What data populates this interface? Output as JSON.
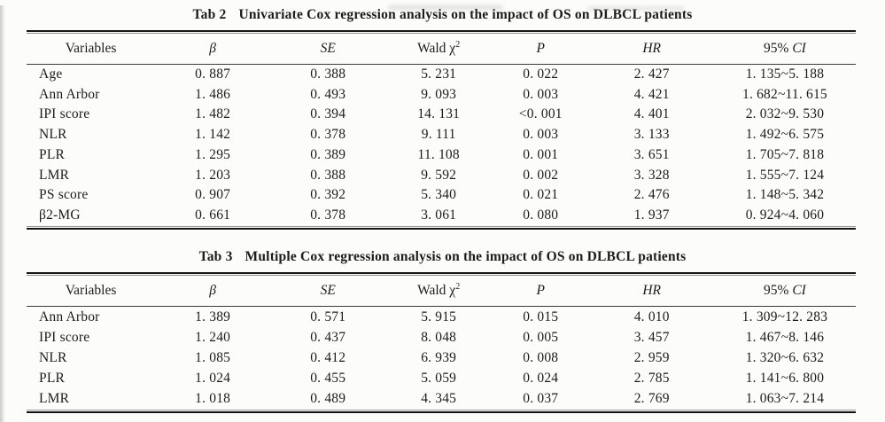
{
  "header_columns": {
    "variables": "Variables",
    "beta": "β",
    "se": "SE",
    "wald": "Wald χ",
    "wald_sup": "2",
    "p": "P",
    "hr": "HR",
    "ci_plain": "95%",
    "ci_italic": "CI"
  },
  "tab2": {
    "title_label": "Tab 2",
    "title_text": "Univariate Cox regression analysis on the impact of OS on DLBCL patients",
    "rows": [
      [
        "Age",
        "0. 887",
        "0. 388",
        "5. 231",
        "0. 022",
        "2. 427",
        "1. 135~5. 188"
      ],
      [
        "Ann Arbor",
        "1. 486",
        "0. 493",
        "9. 093",
        "0. 003",
        "4. 421",
        "1. 682~11. 615"
      ],
      [
        "IPI score",
        "1. 482",
        "0. 394",
        "14. 131",
        "<0. 001",
        "4. 401",
        "2. 032~9. 530"
      ],
      [
        "NLR",
        "1. 142",
        "0. 378",
        "9. 111",
        "0. 003",
        "3. 133",
        "1. 492~6. 575"
      ],
      [
        "PLR",
        "1. 295",
        "0. 389",
        "11. 108",
        "0. 001",
        "3. 651",
        "1. 705~7. 818"
      ],
      [
        "LMR",
        "1. 203",
        "0. 388",
        "9. 592",
        "0. 002",
        "3. 328",
        "1. 555~7. 124"
      ],
      [
        "PS score",
        "0. 907",
        "0. 392",
        "5. 340",
        "0. 021",
        "2. 476",
        "1. 148~5. 342"
      ],
      [
        "β2-MG",
        "0. 661",
        "0. 378",
        "3. 061",
        "0. 080",
        "1. 937",
        "0. 924~4. 060"
      ]
    ]
  },
  "tab3": {
    "title_label": "Tab 3",
    "title_text": "Multiple Cox regression analysis on the impact of OS on DLBCL patients",
    "rows": [
      [
        "Ann Arbor",
        "1. 389",
        "0. 571",
        "5. 915",
        "0. 015",
        "4. 010",
        "1. 309~12. 283"
      ],
      [
        "IPI score",
        "1. 240",
        "0. 437",
        "8. 048",
        "0. 005",
        "3. 457",
        "1. 467~8. 146"
      ],
      [
        "NLR",
        "1. 085",
        "0. 412",
        "6. 939",
        "0. 008",
        "2. 959",
        "1. 320~6. 632"
      ],
      [
        "PLR",
        "1. 024",
        "0. 455",
        "5. 059",
        "0. 024",
        "2. 785",
        "1. 141~6. 800"
      ],
      [
        "LMR",
        "1. 018",
        "0. 489",
        "4. 345",
        "0. 037",
        "2. 769",
        "1. 063~7. 214"
      ]
    ]
  }
}
